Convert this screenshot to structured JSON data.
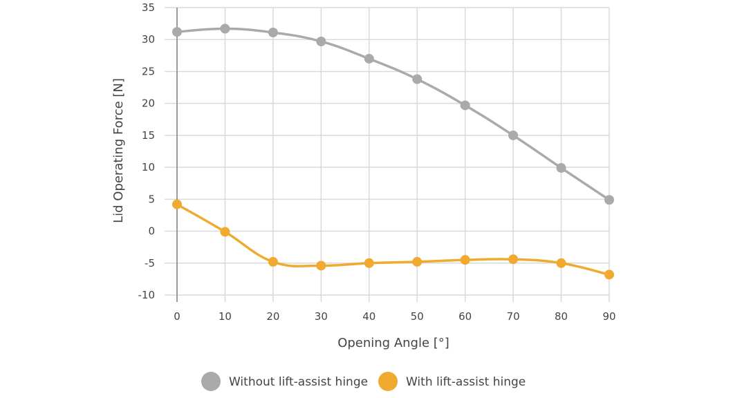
{
  "chart_data": {
    "type": "line",
    "title": "",
    "xlabel": "Opening Angle [°]",
    "ylabel": "Lid Operating Force [N]",
    "x": [
      0,
      10,
      20,
      30,
      40,
      50,
      60,
      70,
      80,
      90
    ],
    "xlim": [
      0,
      90
    ],
    "ylim": [
      -10,
      35
    ],
    "x_ticks": [
      "0",
      "10",
      "20",
      "30",
      "40",
      "50",
      "60",
      "70",
      "80",
      "90"
    ],
    "y_ticks": [
      "35",
      "30",
      "25",
      "20",
      "15",
      "10",
      "5",
      "0",
      "-5",
      "-10"
    ],
    "grid": true,
    "smooth": true,
    "legend_position": "bottom",
    "series": [
      {
        "name": "Without lift-assist hinge",
        "color": "#aaaaaa",
        "values": [
          31.2,
          31.7,
          31.1,
          29.7,
          27.0,
          23.8,
          19.7,
          15.0,
          9.9,
          4.9
        ]
      },
      {
        "name": "With lift-assist hinge",
        "color": "#f0aa30",
        "values": [
          4.2,
          -0.1,
          -4.8,
          -5.4,
          -5.0,
          -4.8,
          -4.5,
          -4.4,
          -5.0,
          -6.8
        ]
      }
    ]
  }
}
